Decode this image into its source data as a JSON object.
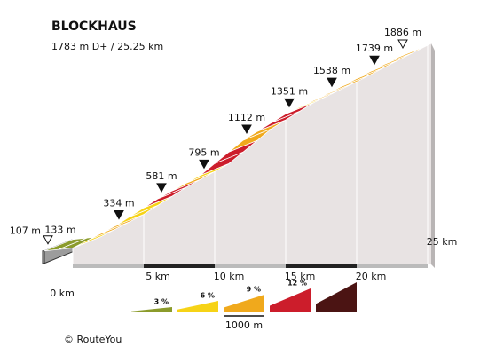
{
  "chart_data": {
    "type": "profile",
    "title": "BLOCKHAUS",
    "subtitle": "1783 m D+ / 25.25 km",
    "x": [
      0,
      2,
      5,
      8,
      11,
      14,
      17,
      20,
      23,
      25.25
    ],
    "values": [
      107,
      133,
      334,
      581,
      795,
      1112,
      1351,
      1538,
      1739,
      1886
    ],
    "value_labels": [
      "107 m",
      "133 m",
      "334 m",
      "581 m",
      "795 m",
      "1112 m",
      "1351 m",
      "1538 m",
      "1739 m",
      "1886 m"
    ],
    "marker_styles": [
      "open",
      "none",
      "filled",
      "filled",
      "filled",
      "filled",
      "filled",
      "filled",
      "filled",
      "open"
    ],
    "gradients": [
      1.5,
      1.5,
      5,
      7,
      7,
      5,
      5,
      10,
      10,
      7,
      5,
      10,
      10,
      7,
      8,
      10,
      10,
      5,
      7,
      7,
      7,
      8,
      7,
      7,
      7,
      7
    ],
    "xlim": [
      0,
      25.25
    ],
    "ylim": [
      0,
      1886
    ],
    "xticks": [
      {
        "value": 0,
        "label": "0 km"
      },
      {
        "value": 5,
        "label": "5 km"
      },
      {
        "value": 10,
        "label": "10 km"
      },
      {
        "value": 15,
        "label": "15 km"
      },
      {
        "value": 20,
        "label": "20 km"
      },
      {
        "value": 25,
        "label": "25 km"
      }
    ],
    "legend": {
      "thresholds": [
        {
          "value": 3,
          "label": "3 %"
        },
        {
          "value": 6,
          "label": "6 %"
        },
        {
          "value": 9,
          "label": "9 %"
        },
        {
          "value": 12,
          "label": "12 %"
        }
      ],
      "colors": [
        "#8b9b2b",
        "#f6d317",
        "#f0a91c",
        "#cc1d2b",
        "#4b1413"
      ],
      "scale_label": "1000 m"
    },
    "credit": "© RouteYou"
  }
}
